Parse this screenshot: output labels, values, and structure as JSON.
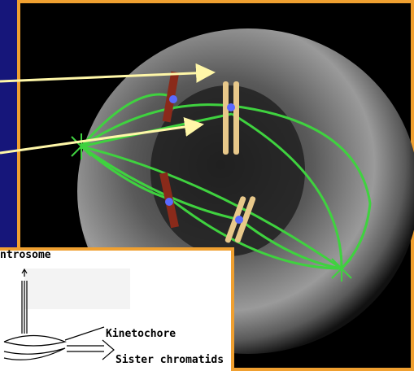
{
  "inset": {
    "labels": [
      "ntrosome",
      "Kinetochore",
      "Sister chromatids"
    ]
  }
}
